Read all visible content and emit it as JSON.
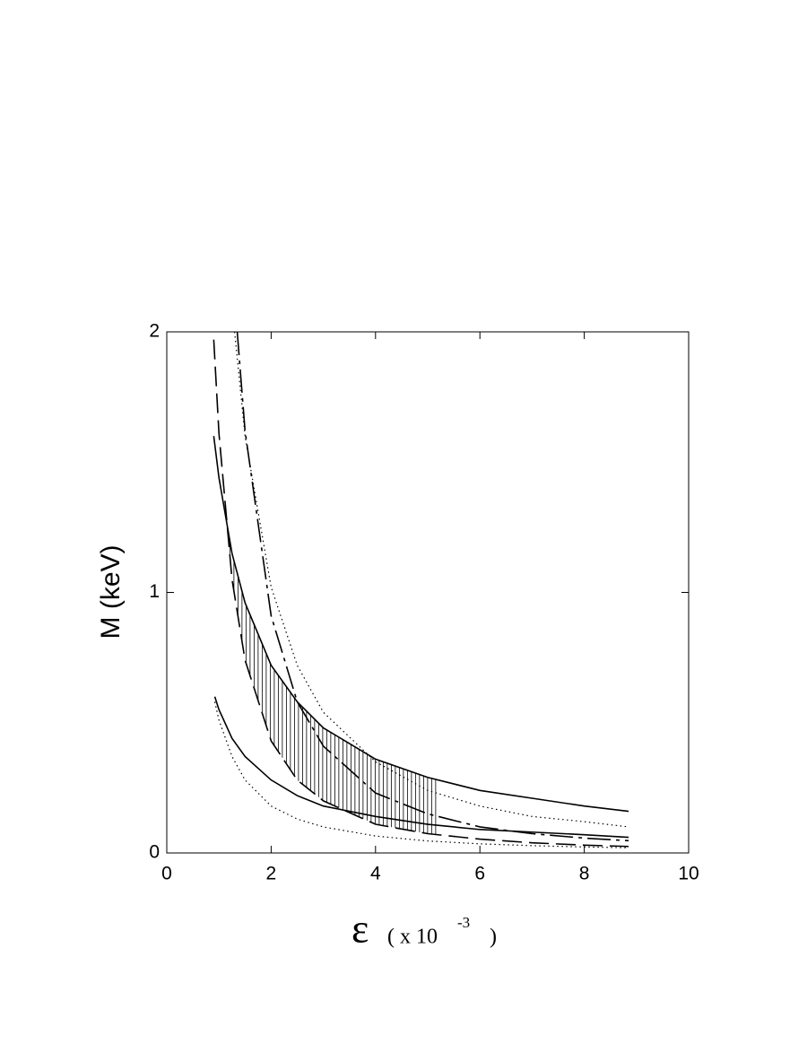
{
  "chart_data": {
    "type": "line",
    "y_label": "M (keV)",
    "x_label": {
      "symbol": "ε",
      "unit": "( x 10",
      "exponent": "-3",
      "close": ")"
    },
    "xlim": [
      0,
      10
    ],
    "xticks": [
      0,
      2,
      4,
      6,
      8,
      10
    ],
    "ylim": [
      0,
      2
    ],
    "yticks": [
      0,
      1,
      2
    ],
    "hatch": true,
    "series": [
      {
        "color": "#000000",
        "dash": "solid",
        "x": [
          0.9,
          1,
          1.25,
          1.5,
          2,
          2.5,
          3,
          4,
          5,
          6,
          7,
          8,
          8.85
        ],
        "values": [
          1.6,
          1.44,
          1.15,
          0.96,
          0.72,
          0.58,
          0.48,
          0.36,
          0.29,
          0.24,
          0.21,
          0.18,
          0.16
        ]
      },
      {
        "color": "#000000",
        "dash": "solid",
        "x": [
          0.92,
          1,
          1.25,
          1.5,
          2,
          2.5,
          3,
          4,
          5,
          6,
          7,
          8,
          8.85
        ],
        "values": [
          0.6,
          0.55,
          0.44,
          0.37,
          0.28,
          0.22,
          0.18,
          0.14,
          0.11,
          0.09,
          0.08,
          0.07,
          0.06
        ]
      },
      {
        "color": "#000000",
        "dash": "dashed",
        "x": [
          0.9,
          1,
          1.25,
          1.5,
          2,
          2.5,
          3,
          4,
          5,
          6,
          7,
          8,
          8.85
        ],
        "values": [
          1.97,
          1.61,
          1.05,
          0.74,
          0.43,
          0.28,
          0.2,
          0.11,
          0.074,
          0.053,
          0.039,
          0.03,
          0.025
        ]
      },
      {
        "color": "#000000",
        "dash": "dashdot",
        "x": [
          1.35,
          1.5,
          2,
          2.5,
          3,
          4,
          5,
          6,
          7,
          8,
          8.85
        ],
        "values": [
          2.0,
          1.62,
          0.91,
          0.58,
          0.41,
          0.23,
          0.15,
          0.1,
          0.074,
          0.057,
          0.047
        ]
      },
      {
        "color": "#000000",
        "dash": "dotted",
        "x": [
          1.3,
          1.5,
          2,
          2.5,
          3,
          4,
          5,
          6,
          7,
          8,
          8.85
        ],
        "values": [
          2.0,
          1.6,
          1.02,
          0.72,
          0.54,
          0.35,
          0.24,
          0.18,
          0.14,
          0.12,
          0.1
        ]
      },
      {
        "color": "#000000",
        "dash": "dotted",
        "x": [
          0.92,
          1,
          1.25,
          1.5,
          2,
          2.5,
          3,
          4,
          5,
          6,
          7,
          8,
          8.85
        ],
        "values": [
          0.58,
          0.51,
          0.37,
          0.28,
          0.18,
          0.13,
          0.1,
          0.065,
          0.046,
          0.035,
          0.028,
          0.023,
          0.02
        ]
      }
    ]
  }
}
